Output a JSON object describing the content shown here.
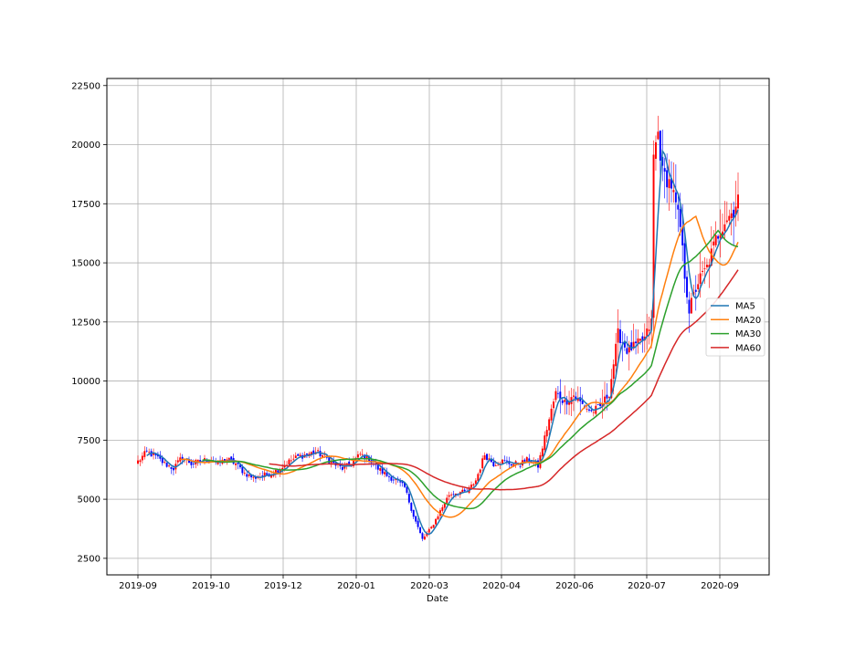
{
  "chart_data": {
    "type": "candlestick",
    "xlabel": "Date",
    "ylabel": "",
    "ylim": [
      1800,
      22800
    ],
    "grid": true,
    "legend_position": "right",
    "x_ticks": [
      "2019-09",
      "2019-10",
      "2019-12",
      "2020-01",
      "2020-03",
      "2020-04",
      "2020-06",
      "2020-07",
      "2020-09"
    ],
    "y_ticks": [
      "2500",
      "5000",
      "7500",
      "10000",
      "12500",
      "15000",
      "17500",
      "20000",
      "22500"
    ],
    "y_tick_values": [
      2500,
      5000,
      7500,
      10000,
      12500,
      15000,
      17500,
      20000,
      22500
    ],
    "candle_colors": {
      "up": "#ff0000",
      "down": "#0000ff"
    },
    "close_anchors": [
      [
        0,
        6600
      ],
      [
        4,
        7000
      ],
      [
        8,
        6800
      ],
      [
        12,
        6500
      ],
      [
        16,
        6300
      ],
      [
        20,
        6800
      ],
      [
        24,
        6500
      ],
      [
        28,
        6600
      ],
      [
        32,
        6700
      ],
      [
        36,
        6500
      ],
      [
        40,
        6700
      ],
      [
        44,
        6500
      ],
      [
        48,
        6100
      ],
      [
        52,
        5900
      ],
      [
        56,
        6000
      ],
      [
        60,
        6100
      ],
      [
        64,
        6300
      ],
      [
        68,
        6600
      ],
      [
        72,
        6800
      ],
      [
        76,
        6900
      ],
      [
        80,
        7000
      ],
      [
        84,
        6800
      ],
      [
        88,
        6500
      ],
      [
        92,
        6300
      ],
      [
        96,
        6500
      ],
      [
        100,
        6900
      ],
      [
        104,
        6700
      ],
      [
        108,
        6300
      ],
      [
        112,
        6000
      ],
      [
        116,
        5800
      ],
      [
        120,
        5500
      ],
      [
        124,
        4300
      ],
      [
        128,
        3300
      ],
      [
        132,
        3800
      ],
      [
        136,
        4500
      ],
      [
        140,
        5200
      ],
      [
        144,
        5300
      ],
      [
        148,
        5300
      ],
      [
        152,
        5800
      ],
      [
        156,
        6900
      ],
      [
        160,
        6500
      ],
      [
        164,
        6600
      ],
      [
        168,
        6500
      ],
      [
        172,
        6500
      ],
      [
        176,
        6700
      ],
      [
        180,
        6400
      ],
      [
        184,
        8000
      ],
      [
        188,
        9500
      ],
      [
        192,
        9100
      ],
      [
        196,
        9400
      ],
      [
        200,
        9000
      ],
      [
        204,
        8700
      ],
      [
        208,
        8900
      ],
      [
        212,
        9500
      ],
      [
        216,
        12000
      ],
      [
        220,
        11300
      ],
      [
        224,
        11500
      ],
      [
        228,
        11800
      ],
      [
        231,
        12500
      ],
      [
        232,
        19500
      ],
      [
        234,
        20500
      ],
      [
        236,
        18800
      ],
      [
        240,
        18300
      ],
      [
        244,
        16500
      ],
      [
        246,
        14500
      ],
      [
        248,
        13000
      ],
      [
        252,
        14200
      ],
      [
        256,
        14800
      ],
      [
        260,
        16000
      ],
      [
        264,
        16800
      ],
      [
        268,
        17200
      ],
      [
        270,
        17800
      ]
    ],
    "series": [
      {
        "name": "MA5",
        "color": "#1f77b4",
        "window": 5
      },
      {
        "name": "MA20",
        "color": "#ff7f0e",
        "window": 20
      },
      {
        "name": "MA30",
        "color": "#2ca02c",
        "window": 30
      },
      {
        "name": "MA60",
        "color": "#d62728",
        "window": 60
      }
    ]
  }
}
